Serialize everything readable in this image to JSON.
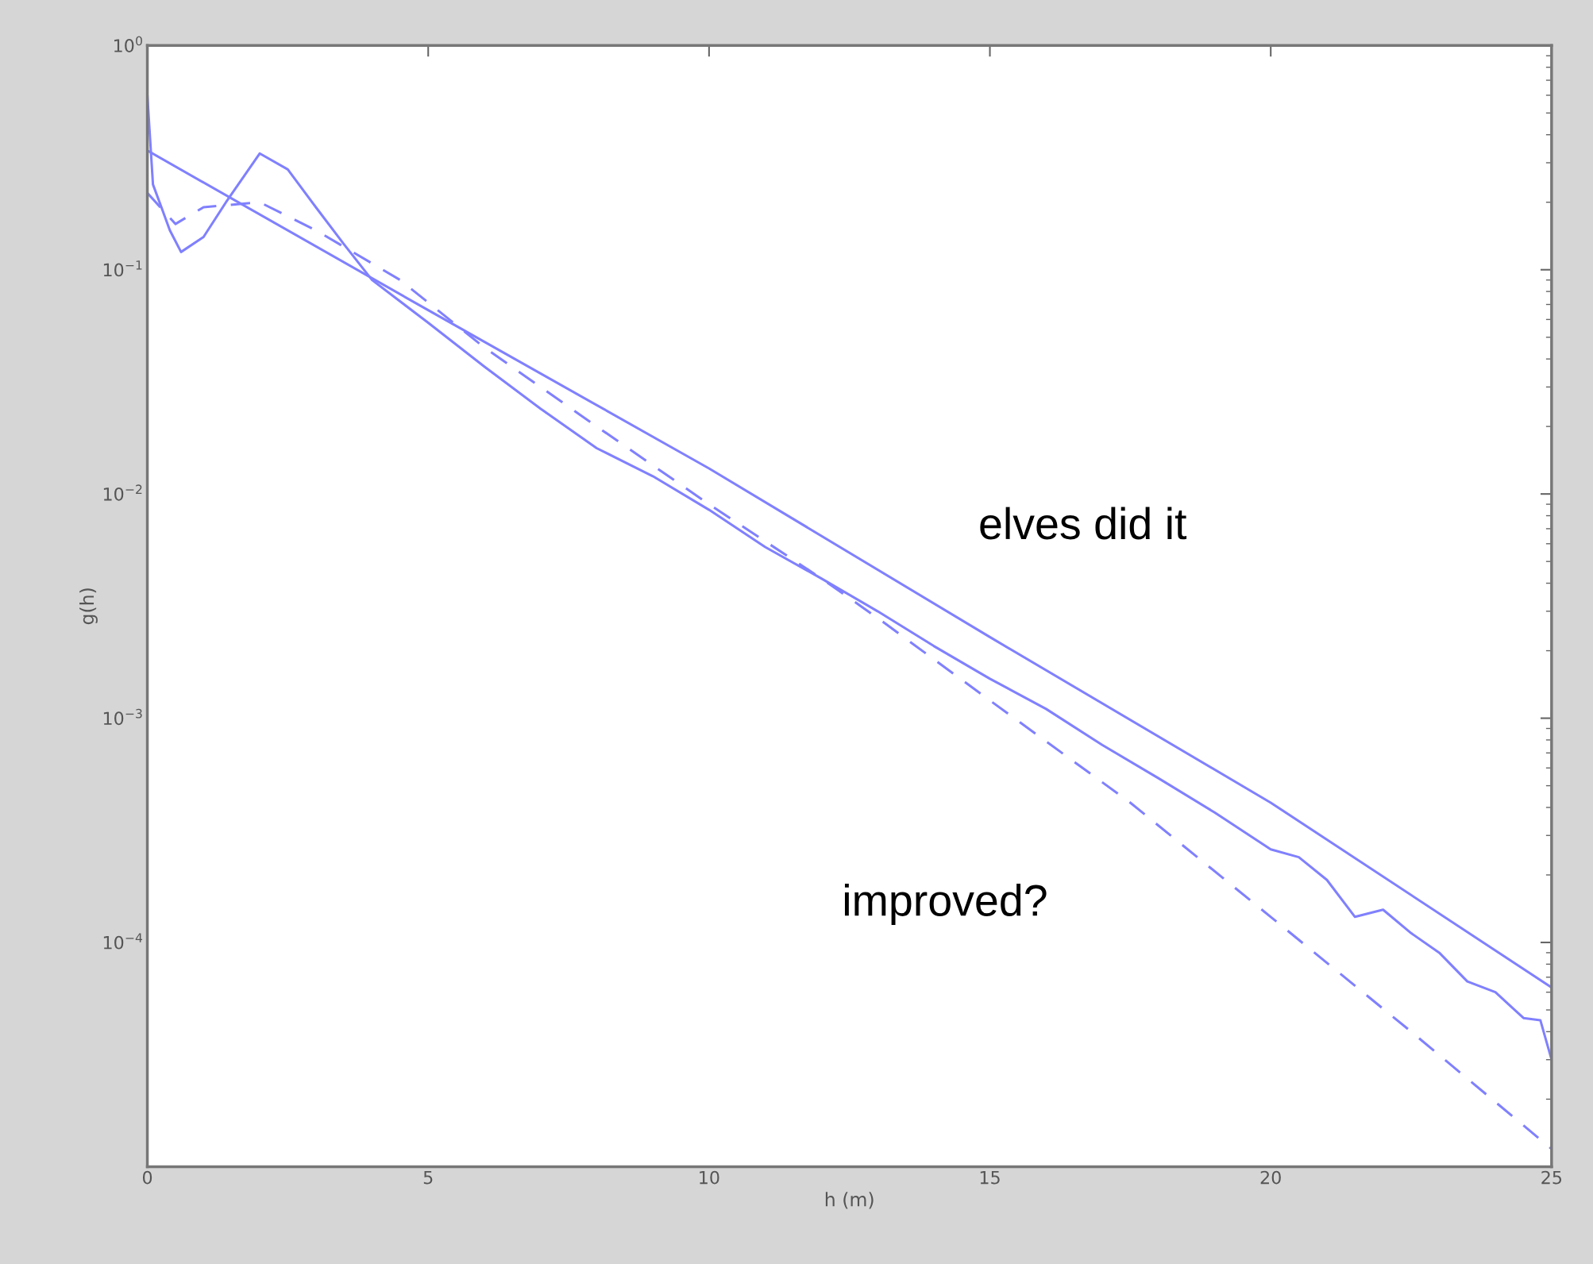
{
  "chart_data": {
    "type": "line",
    "xlabel": "h (m)",
    "ylabel": "g(h)",
    "log": "y",
    "grid": false,
    "legend": false,
    "xlim": [
      0,
      25
    ],
    "xticks": [
      0,
      5,
      10,
      15,
      20,
      25
    ],
    "ylim": [
      1e-05,
      1
    ],
    "yticks": [
      {
        "value": 1,
        "label": "10$^{0}$"
      },
      {
        "value": 0.1,
        "label": "10$^{−1}$"
      },
      {
        "value": 0.01,
        "label": "10$^{−2}$"
      },
      {
        "value": 0.001,
        "label": "10$^{−3}$"
      },
      {
        "value": 0.0001,
        "label": "10$^{−4}$"
      }
    ],
    "annotations": [
      "elves did it",
      "improved?"
    ],
    "series": [
      {
        "color": "#8080ff",
        "line_style": "solid",
        "x": [
          0,
          5,
          10,
          15,
          20,
          25
        ],
        "values": [
          0.34,
          0.066,
          0.013,
          0.0023,
          0.00042,
          6.3e-05
        ]
      },
      {
        "color": "#8080ff",
        "line_style": "solid",
        "x": [
          0,
          0.1,
          0.25,
          0.4,
          0.6,
          1.0,
          1.4,
          2.0,
          2.5,
          3.0,
          3.5,
          4,
          5,
          6,
          7,
          8,
          9,
          10,
          11,
          12,
          13,
          14,
          15,
          16,
          17,
          18,
          19,
          20,
          20.5,
          21,
          21.5,
          22,
          22.5,
          23,
          23.5,
          24,
          24.5,
          24.8,
          25
        ],
        "values": [
          0.6,
          0.24,
          0.19,
          0.15,
          0.12,
          0.14,
          0.2,
          0.33,
          0.28,
          0.19,
          0.13,
          0.09,
          0.058,
          0.037,
          0.024,
          0.016,
          0.012,
          0.0085,
          0.0058,
          0.0042,
          0.003,
          0.0021,
          0.0015,
          0.0011,
          0.00076,
          0.00054,
          0.00038,
          0.00026,
          0.00024,
          0.00019,
          0.00013,
          0.00014,
          0.00011,
          9e-05,
          6.7e-05,
          6e-05,
          4.6e-05,
          4.5e-05,
          3e-05
        ]
      },
      {
        "color": "#8080ff",
        "line_style": "dashed",
        "x": [
          0,
          0.5,
          1,
          2,
          3,
          4.5,
          6,
          8,
          10,
          12,
          13,
          15,
          17.5,
          20,
          22.5,
          25
        ],
        "values": [
          0.22,
          0.16,
          0.19,
          0.2,
          0.15,
          0.09,
          0.045,
          0.02,
          0.009,
          0.0042,
          0.0028,
          0.0012,
          0.00042,
          0.00013,
          4e-05,
          1.2e-05
        ]
      }
    ]
  }
}
